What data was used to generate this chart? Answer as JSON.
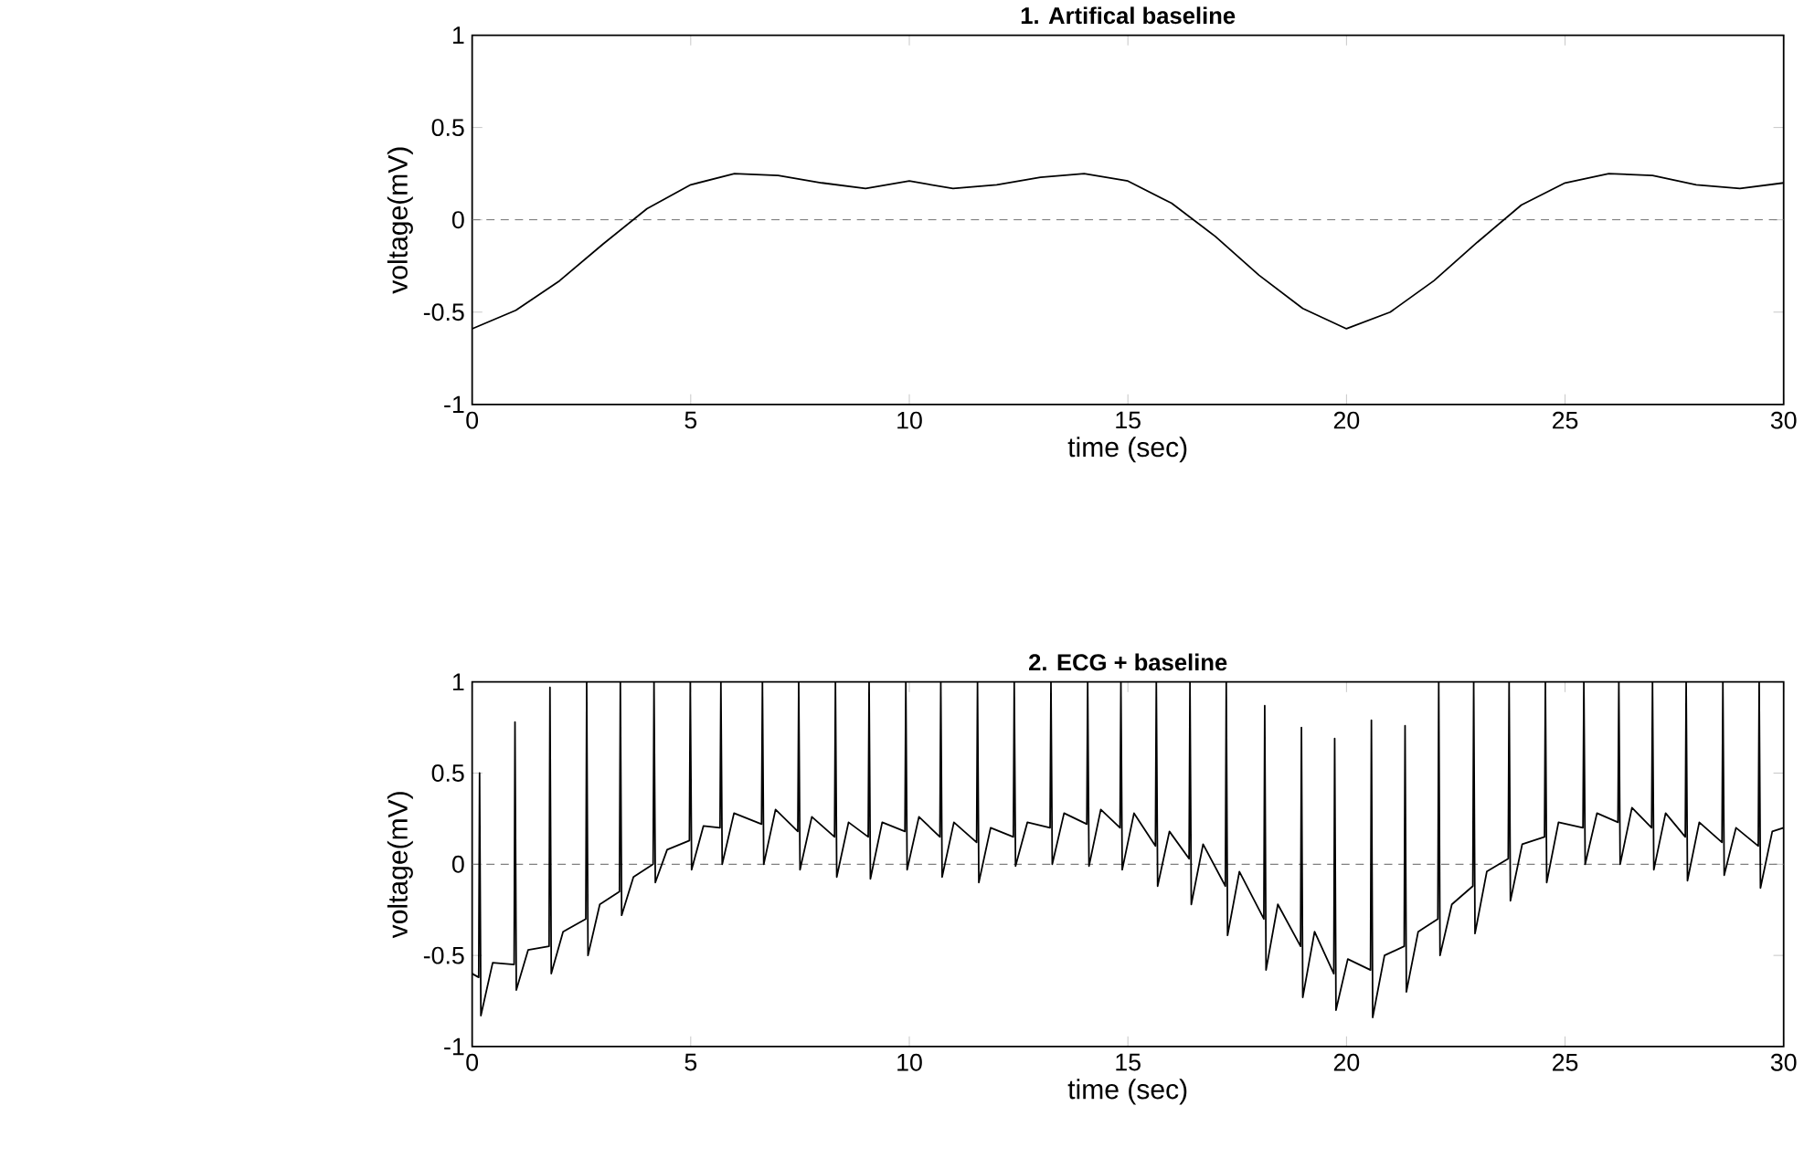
{
  "chart_data": [
    {
      "type": "line",
      "title": "1. Artifical baseline",
      "xlabel": "time (sec)",
      "ylabel": "voltage(mV)",
      "xlim": [
        0,
        30
      ],
      "ylim": [
        -1,
        1
      ],
      "xticks": [
        0,
        5,
        10,
        15,
        20,
        25,
        30
      ],
      "yticks": [
        -1,
        -0.5,
        0,
        0.5,
        1
      ],
      "ref_lines": [
        {
          "axis": "y",
          "value": 0,
          "color": "#808080",
          "line_style": "dashed"
        }
      ],
      "series": [
        {
          "color": "#000000",
          "x": [
            0,
            1,
            2,
            3,
            4,
            5,
            6,
            7,
            8,
            9,
            10,
            11,
            12,
            13,
            14,
            15,
            16,
            17,
            18,
            19,
            20,
            21,
            22,
            23,
            24,
            25,
            26,
            27,
            28,
            29,
            30
          ],
          "values": [
            -0.59,
            -0.49,
            -0.33,
            -0.13,
            0.06,
            0.19,
            0.25,
            0.24,
            0.2,
            0.17,
            0.21,
            0.17,
            0.19,
            0.23,
            0.25,
            0.21,
            0.09,
            -0.09,
            -0.3,
            -0.48,
            -0.59,
            -0.5,
            -0.33,
            -0.12,
            0.08,
            0.2,
            0.25,
            0.24,
            0.19,
            0.17,
            0.2
          ]
        }
      ]
    },
    {
      "type": "line",
      "title": "2. ECG + baseline",
      "xlabel": "time (sec)",
      "ylabel": "voltage(mV)",
      "xlim": [
        0,
        30
      ],
      "ylim": [
        -1,
        1
      ],
      "xticks": [
        0,
        5,
        10,
        15,
        20,
        25,
        30
      ],
      "yticks": [
        -1,
        -0.5,
        0,
        0.5,
        1
      ],
      "ref_lines": [
        {
          "axis": "y",
          "value": 0,
          "color": "#808080",
          "line_style": "dashed"
        }
      ],
      "series": [
        {
          "color": "#000000",
          "x": [
            0,
            0.15,
            0.17,
            0.2,
            0.47,
            0.96,
            0.98,
            1.01,
            1.28,
            1.76,
            1.78,
            1.81,
            2.08,
            2.6,
            2.62,
            2.65,
            2.92,
            3.37,
            3.39,
            3.42,
            3.69,
            4.14,
            4.16,
            4.19,
            4.46,
            4.97,
            4.99,
            5.02,
            5.29,
            5.67,
            5.69,
            5.72,
            5.99,
            6.62,
            6.64,
            6.67,
            6.94,
            7.45,
            7.47,
            7.5,
            7.77,
            8.29,
            8.31,
            8.34,
            8.61,
            9.06,
            9.08,
            9.11,
            9.38,
            9.9,
            9.92,
            9.95,
            10.22,
            10.7,
            10.72,
            10.75,
            11.02,
            11.54,
            11.56,
            11.59,
            11.86,
            12.38,
            12.4,
            12.43,
            12.7,
            13.22,
            13.24,
            13.27,
            13.54,
            14.06,
            14.08,
            14.11,
            14.38,
            14.82,
            14.84,
            14.87,
            15.14,
            15.63,
            15.65,
            15.68,
            15.95,
            16.4,
            16.42,
            16.45,
            16.72,
            17.23,
            17.25,
            17.28,
            17.55,
            18.11,
            18.13,
            18.16,
            18.43,
            18.95,
            18.97,
            19,
            19.27,
            19.71,
            19.73,
            19.76,
            20.03,
            20.55,
            20.57,
            20.6,
            20.87,
            21.32,
            21.34,
            21.37,
            21.64,
            22.09,
            22.11,
            22.14,
            22.41,
            22.89,
            22.91,
            22.94,
            23.21,
            23.7,
            23.72,
            23.75,
            24.02,
            24.53,
            24.55,
            24.58,
            24.85,
            25.41,
            25.43,
            25.46,
            25.73,
            26.21,
            26.23,
            26.26,
            26.53,
            26.98,
            27,
            27.03,
            27.3,
            27.75,
            27.77,
            27.8,
            28.07,
            28.59,
            28.61,
            28.64,
            28.91,
            29.42,
            29.44,
            29.47,
            29.74,
            30
          ],
          "values": [
            -0.6,
            -0.62,
            0.5,
            -0.83,
            -0.54,
            -0.55,
            0.78,
            -0.69,
            -0.47,
            -0.45,
            0.97,
            -0.6,
            -0.37,
            -0.3,
            1,
            -0.5,
            -0.22,
            -0.15,
            1,
            -0.28,
            -0.07,
            0,
            1,
            -0.1,
            0.08,
            0.13,
            1,
            -0.03,
            0.21,
            0.2,
            1,
            0,
            0.28,
            0.22,
            1,
            0,
            0.3,
            0.18,
            1,
            -0.03,
            0.26,
            0.15,
            1,
            -0.07,
            0.23,
            0.15,
            1,
            -0.08,
            0.23,
            0.18,
            1,
            -0.03,
            0.26,
            0.15,
            1,
            -0.07,
            0.23,
            0.12,
            1,
            -0.1,
            0.2,
            0.15,
            1,
            -0.01,
            0.23,
            0.2,
            1,
            0,
            0.28,
            0.22,
            1,
            -0.01,
            0.3,
            0.2,
            1,
            -0.03,
            0.28,
            0.1,
            1,
            -0.12,
            0.18,
            0.03,
            1,
            -0.22,
            0.11,
            -0.12,
            1,
            -0.39,
            -0.04,
            -0.3,
            0.87,
            -0.58,
            -0.22,
            -0.45,
            0.75,
            -0.73,
            -0.37,
            -0.6,
            0.69,
            -0.8,
            -0.52,
            -0.58,
            0.79,
            -0.84,
            -0.5,
            -0.45,
            0.76,
            -0.7,
            -0.37,
            -0.3,
            1,
            -0.5,
            -0.22,
            -0.12,
            1,
            -0.38,
            -0.04,
            0.03,
            1,
            -0.2,
            0.11,
            0.15,
            1,
            -0.1,
            0.23,
            0.2,
            1,
            0,
            0.28,
            0.23,
            1,
            0,
            0.31,
            0.2,
            1,
            -0.03,
            0.28,
            0.15,
            1,
            -0.09,
            0.23,
            0.12,
            1,
            -0.06,
            0.2,
            0.1,
            1,
            -0.13,
            0.18,
            0.2
          ]
        }
      ]
    }
  ]
}
